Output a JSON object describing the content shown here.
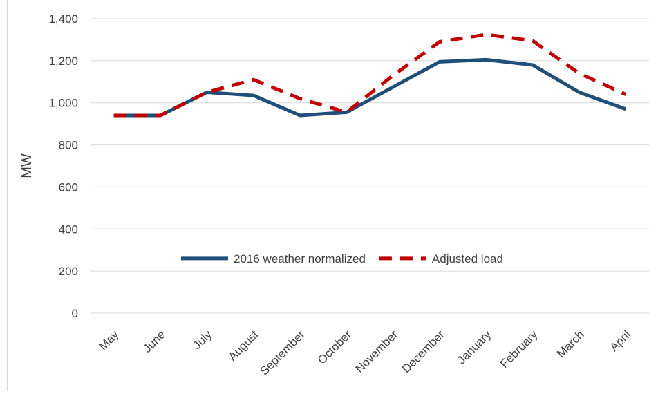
{
  "chart_data": {
    "type": "line",
    "y_label": "MW",
    "categories": [
      "May",
      "June",
      "July",
      "August",
      "September",
      "October",
      "November",
      "December",
      "January",
      "February",
      "March",
      "April"
    ],
    "series": [
      {
        "name": "2016 weather normalized",
        "color": "#1f4e79",
        "dash": false,
        "values": [
          940,
          940,
          1050,
          1035,
          940,
          955,
          1075,
          1195,
          1205,
          1180,
          1050,
          970
        ]
      },
      {
        "name": "Adjusted load",
        "color": "#c00000",
        "dash": true,
        "values": [
          940,
          940,
          1050,
          1110,
          1020,
          955,
          1130,
          1290,
          1325,
          1295,
          1140,
          1040
        ]
      }
    ],
    "ylim": [
      0,
      1400
    ],
    "yticks": [
      0,
      200,
      400,
      600,
      800,
      {
        "value": 1000,
        "label": "1,000"
      },
      {
        "value": 1200,
        "label": "1,200"
      },
      {
        "value": 1400,
        "label": "1,400"
      }
    ],
    "grid": true,
    "legend": "lower center"
  }
}
